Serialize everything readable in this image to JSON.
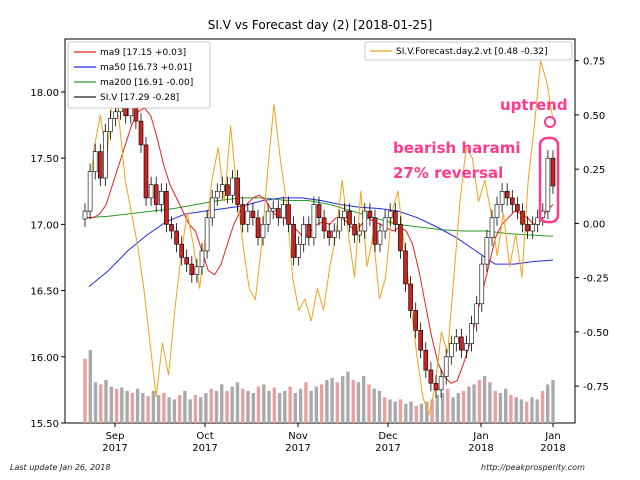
{
  "chart_data": {
    "type": "candlestick",
    "title": "SI.V vs Forecast day (2)  [2018-01-25]",
    "left_axis": {
      "ylim": [
        15.5,
        18.4
      ],
      "ticks": [
        "15.50",
        "16.00",
        "16.50",
        "17.00",
        "17.50",
        "18.00"
      ],
      "tick_values": [
        15.5,
        16.0,
        16.5,
        17.0,
        17.5,
        18.0
      ]
    },
    "right_axis": {
      "ylim": [
        -0.92,
        0.85
      ],
      "ticks": [
        "-0.75",
        "-0.50",
        "-0.25",
        "0.00",
        "0.25",
        "0.50",
        "0.75"
      ],
      "tick_values": [
        -0.75,
        -0.5,
        -0.25,
        0.0,
        0.25,
        0.5,
        0.75
      ]
    },
    "x_axis": {
      "start_date": "2017-08-22",
      "end_date": "2018-01-25",
      "ticks": [
        {
          "date": "2017-09-01",
          "label": "Sep",
          "year": "2017"
        },
        {
          "date": "2017-10-01",
          "label": "Oct",
          "year": "2017"
        },
        {
          "date": "2017-11-01",
          "label": "Nov",
          "year": "2017"
        },
        {
          "date": "2017-12-01",
          "label": "Dec",
          "year": "2017"
        },
        {
          "date": "2018-01-01",
          "label": "Jan",
          "year": "2018"
        },
        {
          "date": "2018-01-25",
          "label": "Jan",
          "year": "2018"
        }
      ]
    },
    "legend_left": [
      {
        "label": "ma9 [17.15 +0.03]",
        "color": "#e8221d"
      },
      {
        "label": "ma50 [16.73 +0.01]",
        "color": "#1f2de0"
      },
      {
        "label": "ma200 [16.91 -0.00]",
        "color": "#2a9a2a"
      },
      {
        "label": "SI.V [17.29 -0.28]",
        "color": "#222222"
      }
    ],
    "legend_right": [
      {
        "label": "SI.V.Forecast.day.2.vt [0.48 -0.32]",
        "color": "#f2a21c"
      }
    ],
    "close_series": {
      "name": "SI.V",
      "values": [
        17.1,
        17.4,
        17.55,
        17.35,
        17.7,
        17.8,
        17.85,
        17.9,
        17.82,
        17.92,
        17.78,
        17.6,
        17.2,
        17.3,
        17.15,
        17.25,
        17.0,
        16.95,
        16.85,
        16.75,
        16.7,
        16.62,
        16.68,
        16.8,
        17.05,
        17.2,
        17.25,
        17.3,
        17.22,
        17.35,
        17.15,
        17.0,
        17.1,
        17.05,
        16.9,
        17.0,
        17.1,
        17.12,
        17.05,
        17.15,
        17.0,
        16.75,
        16.85,
        17.0,
        16.9,
        17.15,
        17.05,
        16.95,
        16.9,
        16.95,
        17.05,
        17.1,
        17.0,
        16.92,
        16.95,
        17.1,
        17.05,
        16.85,
        16.95,
        17.05,
        17.1,
        17.0,
        16.8,
        16.55,
        16.35,
        16.2,
        16.05,
        15.9,
        15.8,
        15.75,
        15.85,
        16.0,
        16.1,
        16.15,
        16.05,
        16.1,
        16.25,
        16.4,
        16.7,
        16.9,
        17.05,
        17.15,
        17.25,
        17.2,
        17.15,
        17.1,
        17.0,
        16.95,
        17.0,
        17.05,
        17.1,
        17.5,
        17.29
      ]
    },
    "ma9": {
      "name": "ma9",
      "values": [
        17.05,
        17.05,
        17.08,
        17.15,
        17.3,
        17.45,
        17.6,
        17.75,
        17.85,
        17.88,
        17.82,
        17.65,
        17.45,
        17.3,
        17.2,
        17.1,
        17.0,
        16.95,
        16.8,
        16.65,
        16.62,
        16.7,
        16.85,
        17.0,
        17.1,
        17.15,
        17.2,
        17.22,
        17.18,
        17.1,
        17.05,
        17.05,
        17.0,
        16.95,
        16.9,
        16.95,
        17.0,
        17.02,
        17.0,
        17.05,
        17.05,
        17.0,
        16.95,
        17.0,
        17.05,
        17.02,
        17.0,
        16.97,
        16.95,
        16.98,
        16.95,
        16.85,
        16.65,
        16.4,
        16.15,
        15.95,
        15.85,
        15.8,
        15.82,
        15.95,
        16.1,
        16.3,
        16.5,
        16.7,
        16.9,
        17.0,
        17.05,
        17.1,
        17.08,
        17.05,
        17.0,
        17.02,
        17.1,
        17.15
      ]
    },
    "ma50": {
      "name": "ma50",
      "values": [
        16.53,
        16.65,
        16.8,
        16.92,
        17.02,
        17.08,
        17.1,
        17.12,
        17.14,
        17.18,
        17.2,
        17.2,
        17.18,
        17.15,
        17.13,
        17.12,
        17.1,
        17.05,
        16.98,
        16.9,
        16.8,
        16.7,
        16.7,
        16.72,
        16.73
      ]
    },
    "ma200": {
      "name": "ma200",
      "values": [
        17.05,
        17.06,
        17.08,
        17.1,
        17.12,
        17.15,
        17.18,
        17.2,
        17.2,
        17.18,
        17.18,
        17.15,
        17.1,
        17.05,
        17.0,
        16.98,
        16.96,
        16.95,
        16.95,
        16.93,
        16.92,
        16.91
      ]
    },
    "forecast": {
      "name": "SI.V.Forecast.day.2.vt",
      "values": [
        0.05,
        0.35,
        0.5,
        0.3,
        0.6,
        0.48,
        0.2,
        0.05,
        -0.1,
        -0.3,
        -0.55,
        -0.8,
        -0.55,
        -0.7,
        -0.4,
        -0.15,
        0.05,
        -0.1,
        -0.3,
        -0.05,
        0.2,
        0.35,
        0.1,
        0.45,
        0.15,
        -0.1,
        -0.3,
        -0.35,
        -0.1,
        0.25,
        0.55,
        0.3,
        0.1,
        -0.25,
        -0.4,
        -0.35,
        -0.45,
        -0.3,
        -0.4,
        -0.2,
        -0.05,
        0.2,
        -0.05,
        -0.25,
        0.15,
        -0.2,
        -0.05,
        -0.35,
        -0.25,
        0.05,
        0.15,
        -0.1,
        -0.35,
        -0.6,
        -0.8,
        -0.88,
        -0.75,
        -0.5,
        -0.6,
        -0.25,
        0.1,
        0.35,
        0.3,
        0.1,
        0.2,
        0.05,
        -0.15,
        0.05,
        -0.2,
        -0.05,
        -0.25,
        0.2,
        0.45,
        0.75,
        0.65,
        0.48
      ]
    },
    "volume": {
      "name": "volume",
      "values": [
        0.6,
        0.68,
        0.38,
        0.36,
        0.4,
        0.34,
        0.32,
        0.33,
        0.3,
        0.28,
        0.32,
        0.28,
        0.25,
        0.3,
        0.26,
        0.28,
        0.24,
        0.22,
        0.26,
        0.3,
        0.22,
        0.26,
        0.24,
        0.28,
        0.32,
        0.3,
        0.36,
        0.3,
        0.34,
        0.38,
        0.32,
        0.3,
        0.28,
        0.34,
        0.36,
        0.3,
        0.33,
        0.28,
        0.3,
        0.34,
        0.28,
        0.32,
        0.38,
        0.3,
        0.34,
        0.36,
        0.4,
        0.42,
        0.38,
        0.44,
        0.48,
        0.4,
        0.38,
        0.44,
        0.36,
        0.32,
        0.3,
        0.24,
        0.22,
        0.2,
        0.22,
        0.18,
        0.2,
        0.16,
        0.18,
        0.2,
        0.22,
        0.26,
        0.28,
        0.32,
        0.24,
        0.28,
        0.3,
        0.34,
        0.36,
        0.4,
        0.44,
        0.38,
        0.3,
        0.28,
        0.32,
        0.26,
        0.24,
        0.22,
        0.2,
        0.24,
        0.22,
        0.3,
        0.36,
        0.4
      ]
    },
    "annotations": [
      {
        "text": "uptrend",
        "color": "#ff3a8c"
      },
      {
        "text": "bearish harami",
        "color": "#ff3a8c"
      },
      {
        "text": "27% reversal",
        "color": "#ff3a8c"
      }
    ]
  },
  "footer": {
    "last_update": "Last update Jan 26, 2018",
    "source": "http://peakprosperity.com"
  },
  "colors": {
    "ma9": "#e8221d",
    "ma50": "#1f2de0",
    "ma200": "#2a9a2a",
    "forecast": "#f2a21c",
    "up": "#ffffff",
    "down": "#cc2222",
    "vol_up": "#aaaaaa",
    "vol_down": "#e8a0a0",
    "annotation": "#ff3a8c"
  }
}
